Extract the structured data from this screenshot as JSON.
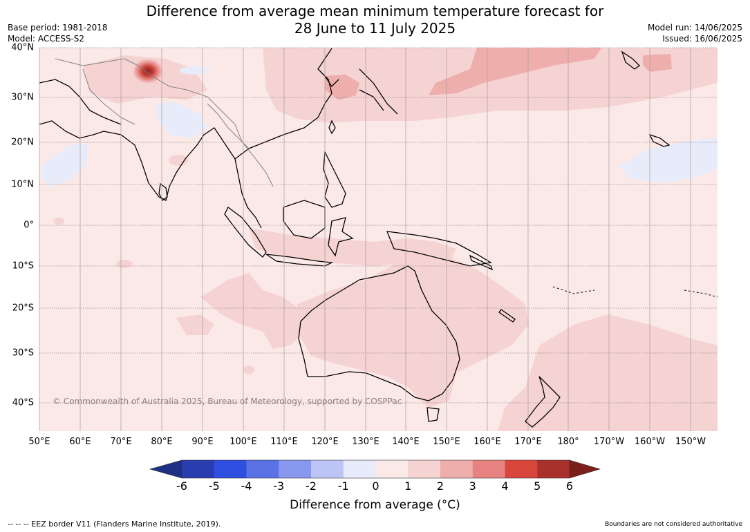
{
  "title": {
    "line1": "Difference from average mean minimum temperature forecast for",
    "line2": "28 June to 11 July 2025"
  },
  "meta": {
    "base_period": "Base period: 1981-2018",
    "model": "Model: ACCESS-S2",
    "model_run": "Model run: 14/06/2025",
    "issued": "Issued: 16/06/2025"
  },
  "map": {
    "lon_ticks": [
      "50°E",
      "60°E",
      "70°E",
      "80°E",
      "90°E",
      "100°E",
      "110°E",
      "120°E",
      "130°E",
      "140°E",
      "150°E",
      "160°E",
      "170°E",
      "180°",
      "170°W",
      "160°W",
      "150°W"
    ],
    "lat_ticks": [
      "40°N",
      "30°N",
      "20°N",
      "10°N",
      "0°",
      "10°S",
      "20°S",
      "30°S",
      "40°S"
    ],
    "copyright": "© Commonwealth of Australia 2025, Bureau of Meteorology, supported by COSPPac",
    "colors": {
      "background_anomaly": "#fbe9e8",
      "band_1_2": "#f5d3d2",
      "band_2_3": "#eeaeac",
      "band_3_4": "#e6827f",
      "hot_core": "#a9312b",
      "cool_0_minus1": "#e8ecfa",
      "land_border": "#000000",
      "country_border": "#808080"
    }
  },
  "colorbar": {
    "ticks": [
      "-6",
      "-5",
      "-4",
      "-3",
      "-2",
      "-1",
      "0",
      "1",
      "2",
      "3",
      "4",
      "5",
      "6"
    ],
    "colors": [
      "#1e2f84",
      "#2a3db0",
      "#2f4fe0",
      "#5b72e6",
      "#8898ee",
      "#bcc5f5",
      "#e8ebfb",
      "#fbe9e8",
      "#f5d3d2",
      "#eeaeac",
      "#e6827f",
      "#d9463c",
      "#a9312b",
      "#7b1f1a"
    ],
    "label": "Difference from average (°C)"
  },
  "footer": {
    "eez": "--  --  -- EEZ border V11 (Flanders Marine Institute, 2019).",
    "disclaimer": "Boundaries are not considered authoritative"
  }
}
